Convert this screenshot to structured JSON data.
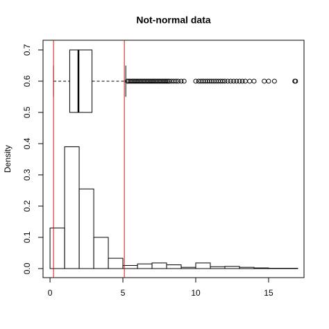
{
  "chart_data": {
    "type": "histogram",
    "title": "Not-normal data",
    "y_label": "Density",
    "bins": [
      0,
      1,
      2,
      3,
      4,
      5,
      6,
      7,
      8,
      9,
      10,
      11,
      12,
      13,
      14,
      15,
      16,
      17
    ],
    "values": [
      0.13,
      0.39,
      0.255,
      0.1,
      0.033,
      0.01,
      0.015,
      0.018,
      0.012,
      0.004,
      0.018,
      0.006,
      0.007,
      0.004,
      0.002,
      0.001,
      0.001
    ],
    "color": "#000000",
    "xlim": [
      -0.48,
      17.43
    ],
    "ylim": [
      -0.029,
      0.731
    ],
    "xticks": [
      0,
      5,
      10,
      15
    ],
    "yticks": [
      {
        "value": 0,
        "label": "0.0"
      },
      0.1,
      0.2,
      0.3,
      0.4,
      0.5,
      0.6,
      0.7
    ],
    "boxplot": {
      "position": 0.6,
      "width": 0.2,
      "whisker_low": 0.24,
      "q1": 1.35,
      "median": 1.95,
      "q3": 2.88,
      "whisker_high": 5.2,
      "outliers": [
        5.3,
        5.4,
        5.5,
        5.6,
        5.7,
        5.8,
        5.9,
        6.0,
        6.1,
        6.2,
        6.3,
        6.4,
        6.5,
        6.6,
        6.7,
        6.8,
        6.9,
        7.0,
        7.1,
        7.2,
        7.3,
        7.4,
        7.5,
        7.6,
        7.7,
        7.8,
        7.9,
        8.0,
        8.1,
        8.2,
        8.35,
        8.5,
        8.65,
        8.8,
        9.0,
        9.2,
        10.0,
        10.2,
        10.35,
        10.5,
        10.65,
        10.8,
        10.95,
        11.1,
        11.25,
        11.4,
        11.55,
        11.7,
        11.85,
        12.0,
        12.2,
        12.4,
        12.6,
        12.8,
        13.0,
        13.2,
        13.4,
        13.7,
        14.0,
        14.7,
        15.0,
        15.4,
        16.8,
        16.85
      ],
      "color": "#000000"
    },
    "vlines": [
      0.24,
      5.1
    ],
    "vline_color": "#ff0000"
  }
}
